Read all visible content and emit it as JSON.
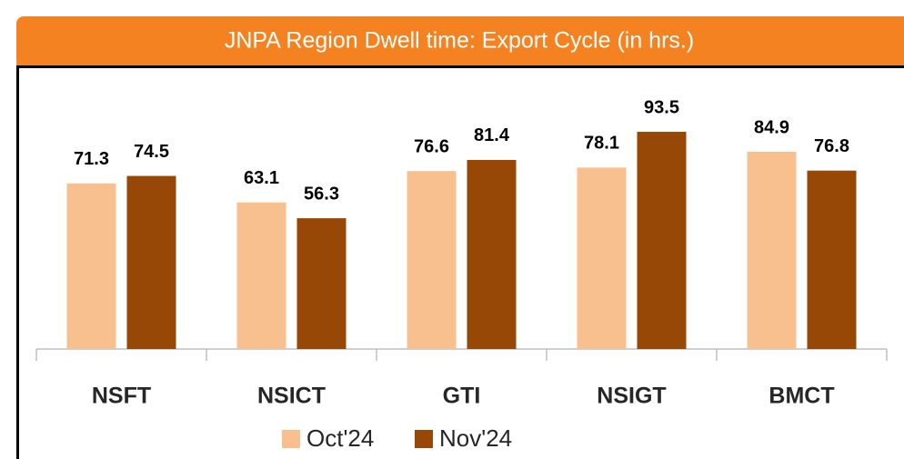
{
  "chart_data": {
    "type": "bar",
    "title": "JNPA Region Dwell time: Export Cycle (in hrs.)",
    "categories": [
      "NSFT",
      "NSICT",
      "GTI",
      "NSIGT",
      "BMCT"
    ],
    "series": [
      {
        "name": "Oct'24",
        "color": "#f8c08f",
        "values": [
          71.3,
          63.1,
          76.6,
          78.1,
          84.9
        ]
      },
      {
        "name": "Nov'24",
        "color": "#974706",
        "values": [
          74.5,
          56.3,
          81.4,
          93.5,
          76.8
        ]
      }
    ],
    "legend": "bottom"
  }
}
